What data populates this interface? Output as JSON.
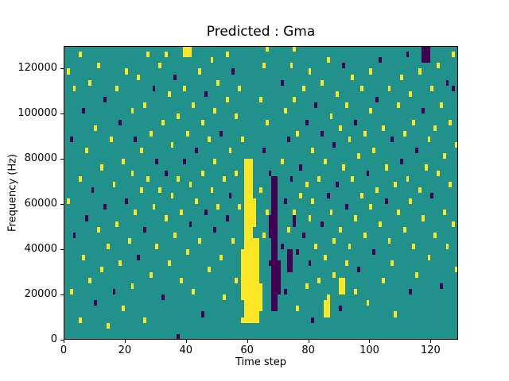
{
  "chart_data": {
    "type": "heatmap",
    "title": "Predicted : Gma",
    "xlabel": "Time step",
    "ylabel": "Frequency (Hz)",
    "xlim": [
      0,
      129
    ],
    "ylim": [
      0,
      130000
    ],
    "x_ticks": [
      0,
      20,
      40,
      60,
      80,
      100,
      120
    ],
    "y_ticks": [
      0,
      20000,
      40000,
      60000,
      80000,
      100000,
      120000
    ],
    "colormap": "viridis",
    "colors": {
      "background": "#21918c",
      "high": "#fde725",
      "low": "#440154"
    },
    "cell_size": {
      "x": 1,
      "y_hz": 2500
    },
    "cell_format": "[time_step, freq_bin_of_2500Hz, value 1=yellow-high 2=purple-low]",
    "regions": [
      {
        "x": 59,
        "w": 3,
        "y0": 7500,
        "y1": 80000,
        "v": 1
      },
      {
        "x": 62,
        "w": 2,
        "y0": 7500,
        "y1": 45000,
        "v": 1
      },
      {
        "x": 58,
        "w": 1,
        "y0": 17500,
        "y1": 40000,
        "v": 1
      },
      {
        "x": 62,
        "w": 1,
        "y0": 50000,
        "y1": 62500,
        "v": 1
      },
      {
        "x": 64,
        "w": 1,
        "y0": 12500,
        "y1": 22500,
        "v": 1
      },
      {
        "x": 68,
        "w": 2,
        "y0": 12500,
        "y1": 72500,
        "v": 2
      },
      {
        "x": 70,
        "w": 1,
        "y0": 20000,
        "y1": 35000,
        "v": 2
      },
      {
        "x": 67,
        "w": 1,
        "y0": 45000,
        "y1": 55000,
        "v": 2
      },
      {
        "x": 73,
        "w": 2,
        "y0": 30000,
        "y1": 40000,
        "v": 2
      },
      {
        "x": 75,
        "w": 1,
        "y0": 50000,
        "y1": 57500,
        "v": 2
      },
      {
        "x": 39,
        "w": 3,
        "y0": 125000,
        "y1": 130000,
        "v": 1
      },
      {
        "x": 117,
        "w": 3,
        "y0": 122500,
        "y1": 130000,
        "v": 2
      },
      {
        "x": 85,
        "w": 2,
        "y0": 10000,
        "y1": 17500,
        "v": 1
      },
      {
        "x": 90,
        "w": 2,
        "y0": 20000,
        "y1": 27500,
        "v": 1
      }
    ],
    "cells": [
      [
        1,
        47,
        1
      ],
      [
        1,
        24,
        1
      ],
      [
        2,
        35,
        2
      ],
      [
        2,
        8,
        1
      ],
      [
        3,
        44,
        1
      ],
      [
        3,
        18,
        2
      ],
      [
        5,
        50,
        1
      ],
      [
        5,
        28,
        1
      ],
      [
        5,
        3,
        1
      ],
      [
        6,
        40,
        2
      ],
      [
        6,
        14,
        1
      ],
      [
        7,
        33,
        1
      ],
      [
        7,
        21,
        2
      ],
      [
        8,
        45,
        1
      ],
      [
        8,
        10,
        1
      ],
      [
        9,
        26,
        2
      ],
      [
        10,
        37,
        1
      ],
      [
        10,
        6,
        2
      ],
      [
        11,
        48,
        1
      ],
      [
        11,
        19,
        1
      ],
      [
        12,
        30,
        1
      ],
      [
        12,
        12,
        1
      ],
      [
        13,
        42,
        2
      ],
      [
        13,
        23,
        2
      ],
      [
        14,
        16,
        1
      ],
      [
        14,
        2,
        1
      ],
      [
        15,
        35,
        1
      ],
      [
        16,
        27,
        1
      ],
      [
        16,
        8,
        2
      ],
      [
        17,
        44,
        1
      ],
      [
        17,
        20,
        1
      ],
      [
        18,
        38,
        2
      ],
      [
        18,
        13,
        1
      ],
      [
        19,
        31,
        1
      ],
      [
        19,
        5,
        1
      ],
      [
        20,
        47,
        1
      ],
      [
        20,
        24,
        2
      ],
      [
        21,
        17,
        1
      ],
      [
        22,
        40,
        1
      ],
      [
        22,
        29,
        1
      ],
      [
        22,
        9,
        1
      ],
      [
        23,
        35,
        2
      ],
      [
        23,
        22,
        1
      ],
      [
        24,
        46,
        1
      ],
      [
        24,
        14,
        2
      ],
      [
        25,
        33,
        1
      ],
      [
        25,
        26,
        1
      ],
      [
        26,
        41,
        1
      ],
      [
        26,
        19,
        2
      ],
      [
        26,
        3,
        1
      ],
      [
        27,
        50,
        1
      ],
      [
        27,
        28,
        1
      ],
      [
        28,
        36,
        1
      ],
      [
        28,
        11,
        1
      ],
      [
        29,
        44,
        2
      ],
      [
        29,
        23,
        1
      ],
      [
        30,
        31,
        2
      ],
      [
        30,
        16,
        1
      ],
      [
        31,
        48,
        1
      ],
      [
        31,
        26,
        1
      ],
      [
        32,
        38,
        1
      ],
      [
        32,
        7,
        2
      ],
      [
        33,
        50,
        1
      ],
      [
        33,
        29,
        2
      ],
      [
        33,
        21,
        1
      ],
      [
        34,
        43,
        1
      ],
      [
        34,
        13,
        1
      ],
      [
        35,
        34,
        1
      ],
      [
        35,
        25,
        1
      ],
      [
        36,
        46,
        2
      ],
      [
        36,
        18,
        1
      ],
      [
        37,
        39,
        1
      ],
      [
        37,
        28,
        1
      ],
      [
        37,
        0,
        2
      ],
      [
        38,
        22,
        1
      ],
      [
        38,
        10,
        1
      ],
      [
        39,
        44,
        1
      ],
      [
        39,
        31,
        2
      ],
      [
        40,
        36,
        1
      ],
      [
        40,
        15,
        1
      ],
      [
        41,
        27,
        1
      ],
      [
        41,
        20,
        2
      ],
      [
        42,
        41,
        1
      ],
      [
        42,
        8,
        1
      ],
      [
        43,
        33,
        2
      ],
      [
        43,
        24,
        1
      ],
      [
        44,
        47,
        1
      ],
      [
        44,
        17,
        1
      ],
      [
        45,
        38,
        1
      ],
      [
        45,
        29,
        1
      ],
      [
        45,
        4,
        2
      ],
      [
        46,
        43,
        2
      ],
      [
        46,
        22,
        2
      ],
      [
        47,
        35,
        1
      ],
      [
        47,
        12,
        1
      ],
      [
        48,
        49,
        1
      ],
      [
        48,
        26,
        1
      ],
      [
        49,
        40,
        1
      ],
      [
        49,
        31,
        1
      ],
      [
        49,
        19,
        2
      ],
      [
        50,
        45,
        1
      ],
      [
        50,
        23,
        1
      ],
      [
        51,
        36,
        2
      ],
      [
        51,
        14,
        1
      ],
      [
        52,
        28,
        1
      ],
      [
        52,
        7,
        1
      ],
      [
        53,
        50,
        1
      ],
      [
        53,
        42,
        1
      ],
      [
        53,
        21,
        2
      ],
      [
        54,
        33,
        1
      ],
      [
        54,
        25,
        2
      ],
      [
        55,
        47,
        2
      ],
      [
        55,
        17,
        1
      ],
      [
        56,
        39,
        1
      ],
      [
        56,
        29,
        1
      ],
      [
        56,
        10,
        1
      ],
      [
        57,
        44,
        1
      ],
      [
        57,
        23,
        1
      ],
      [
        58,
        35,
        1
      ],
      [
        58,
        3,
        1
      ],
      [
        64,
        42,
        1
      ],
      [
        64,
        26,
        1
      ],
      [
        64,
        9,
        1
      ],
      [
        65,
        48,
        1
      ],
      [
        65,
        33,
        2
      ],
      [
        65,
        18,
        1
      ],
      [
        66,
        51,
        1
      ],
      [
        66,
        38,
        1
      ],
      [
        66,
        22,
        1
      ],
      [
        67,
        29,
        2
      ],
      [
        67,
        13,
        2
      ],
      [
        71,
        45,
        2
      ],
      [
        71,
        31,
        1
      ],
      [
        71,
        16,
        2
      ],
      [
        72,
        40,
        1
      ],
      [
        72,
        24,
        2
      ],
      [
        72,
        8,
        2
      ],
      [
        73,
        35,
        2
      ],
      [
        73,
        19,
        1
      ],
      [
        74,
        48,
        1
      ],
      [
        74,
        28,
        2
      ],
      [
        74,
        12,
        2
      ],
      [
        75,
        51,
        1
      ],
      [
        75,
        42,
        1
      ],
      [
        75,
        22,
        1
      ],
      [
        76,
        36,
        1
      ],
      [
        76,
        15,
        2
      ],
      [
        76,
        5,
        1
      ],
      [
        77,
        30,
        2
      ],
      [
        77,
        25,
        1
      ],
      [
        78,
        44,
        1
      ],
      [
        78,
        18,
        2
      ],
      [
        79,
        38,
        2
      ],
      [
        79,
        27,
        1
      ],
      [
        79,
        9,
        1
      ],
      [
        80,
        47,
        1
      ],
      [
        80,
        21,
        1
      ],
      [
        80,
        13,
        2
      ],
      [
        81,
        33,
        1
      ],
      [
        81,
        24,
        1
      ],
      [
        81,
        3,
        2
      ],
      [
        82,
        41,
        2
      ],
      [
        82,
        16,
        1
      ],
      [
        83,
        28,
        1
      ],
      [
        83,
        10,
        1
      ],
      [
        84,
        45,
        1
      ],
      [
        84,
        36,
        2
      ],
      [
        84,
        20,
        2
      ],
      [
        85,
        31,
        1
      ],
      [
        85,
        14,
        1
      ],
      [
        86,
        49,
        1
      ],
      [
        86,
        25,
        2
      ],
      [
        86,
        7,
        1
      ],
      [
        87,
        39,
        1
      ],
      [
        87,
        22,
        1
      ],
      [
        88,
        34,
        2
      ],
      [
        88,
        17,
        1
      ],
      [
        88,
        11,
        1
      ],
      [
        89,
        43,
        1
      ],
      [
        89,
        27,
        2
      ],
      [
        90,
        37,
        1
      ],
      [
        90,
        19,
        1
      ],
      [
        90,
        5,
        2
      ],
      [
        91,
        48,
        2
      ],
      [
        91,
        30,
        1
      ],
      [
        92,
        41,
        1
      ],
      [
        92,
        23,
        2
      ],
      [
        92,
        13,
        1
      ],
      [
        93,
        35,
        1
      ],
      [
        93,
        16,
        1
      ],
      [
        94,
        46,
        1
      ],
      [
        94,
        28,
        1
      ],
      [
        95,
        38,
        2
      ],
      [
        95,
        21,
        1
      ],
      [
        95,
        8,
        1
      ],
      [
        96,
        32,
        1
      ],
      [
        96,
        12,
        2
      ],
      [
        97,
        44,
        1
      ],
      [
        97,
        25,
        1
      ],
      [
        98,
        36,
        1
      ],
      [
        98,
        18,
        1
      ],
      [
        99,
        29,
        2
      ],
      [
        99,
        6,
        1
      ],
      [
        100,
        47,
        1
      ],
      [
        100,
        40,
        1
      ],
      [
        100,
        23,
        1
      ],
      [
        101,
        33,
        1
      ],
      [
        101,
        15,
        2
      ],
      [
        102,
        42,
        2
      ],
      [
        102,
        26,
        1
      ],
      [
        103,
        49,
        2
      ],
      [
        103,
        20,
        1
      ],
      [
        104,
        37,
        1
      ],
      [
        104,
        10,
        1
      ],
      [
        105,
        30,
        1
      ],
      [
        105,
        24,
        2
      ],
      [
        106,
        44,
        1
      ],
      [
        106,
        17,
        1
      ],
      [
        107,
        35,
        2
      ],
      [
        107,
        13,
        1
      ],
      [
        108,
        27,
        1
      ],
      [
        108,
        4,
        1
      ],
      [
        109,
        41,
        1
      ],
      [
        109,
        22,
        1
      ],
      [
        110,
        46,
        1
      ],
      [
        110,
        31,
        2
      ],
      [
        111,
        36,
        1
      ],
      [
        111,
        19,
        1
      ],
      [
        112,
        50,
        2
      ],
      [
        112,
        28,
        1
      ],
      [
        113,
        43,
        1
      ],
      [
        113,
        24,
        1
      ],
      [
        113,
        8,
        2
      ],
      [
        114,
        38,
        1
      ],
      [
        114,
        16,
        1
      ],
      [
        115,
        33,
        2
      ],
      [
        115,
        11,
        1
      ],
      [
        116,
        47,
        1
      ],
      [
        116,
        26,
        1
      ],
      [
        117,
        40,
        2
      ],
      [
        117,
        21,
        1
      ],
      [
        118,
        30,
        1
      ],
      [
        119,
        35,
        1
      ],
      [
        119,
        14,
        1
      ],
      [
        120,
        44,
        1
      ],
      [
        120,
        25,
        2
      ],
      [
        121,
        37,
        1
      ],
      [
        121,
        18,
        1
      ],
      [
        122,
        48,
        1
      ],
      [
        122,
        29,
        1
      ],
      [
        123,
        41,
        1
      ],
      [
        123,
        9,
        2
      ],
      [
        124,
        32,
        1
      ],
      [
        124,
        22,
        1
      ],
      [
        125,
        45,
        2
      ],
      [
        125,
        16,
        1
      ],
      [
        126,
        38,
        1
      ],
      [
        126,
        27,
        1
      ],
      [
        127,
        50,
        1
      ],
      [
        127,
        44,
        2
      ],
      [
        127,
        20,
        1
      ],
      [
        128,
        34,
        1
      ],
      [
        128,
        12,
        1
      ]
    ]
  }
}
